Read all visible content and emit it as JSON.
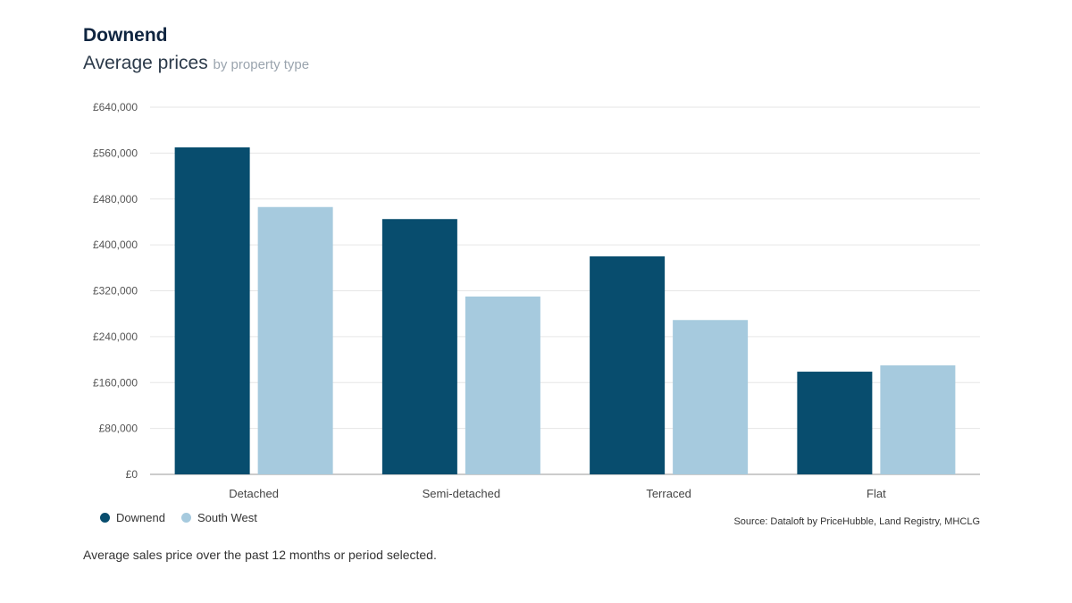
{
  "header": {
    "title": "Downend",
    "subtitle_main": "Average prices",
    "subtitle_note": "by property type"
  },
  "colors": {
    "downend": "#084d6e",
    "south_west": "#a6cade",
    "grid": "#e6e6e6",
    "axis": "#9a9a9a"
  },
  "chart_data": {
    "type": "bar",
    "categories": [
      "Detached",
      "Semi-detached",
      "Terraced",
      "Flat"
    ],
    "series": [
      {
        "name": "Downend",
        "values": [
          570000,
          445000,
          380000,
          179000
        ]
      },
      {
        "name": "South West",
        "values": [
          466000,
          310000,
          269000,
          190000
        ]
      }
    ],
    "ylim": [
      0,
      640000
    ],
    "yticks": [
      0,
      80000,
      160000,
      240000,
      320000,
      400000,
      480000,
      560000,
      640000
    ],
    "ytick_labels": [
      "£0",
      "£80,000",
      "£160,000",
      "£240,000",
      "£320,000",
      "£400,000",
      "£480,000",
      "£560,000",
      "£640,000"
    ],
    "grid": true,
    "legend_position": "bottom-left"
  },
  "legend": [
    {
      "label": "Downend",
      "color": "#084d6e"
    },
    {
      "label": "South West",
      "color": "#a6cade"
    }
  ],
  "source": "Source: Dataloft by PriceHubble, Land Registry, MHCLG",
  "footnote": "Average sales price over the past 12 months or period selected."
}
